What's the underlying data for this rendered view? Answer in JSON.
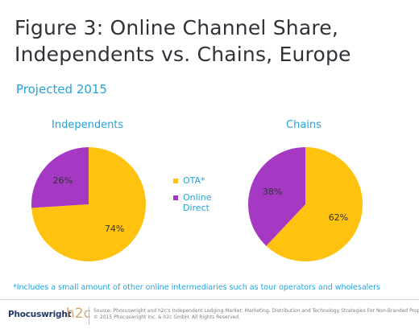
{
  "title_line1": "Figure 3: Online Channel Share,",
  "title_line2": "Independents vs. Chains, Europe",
  "subtitle": "Projected 2015",
  "colors": {
    "ota": "#ffc20e",
    "online_direct": "#a639c4",
    "accent": "#27a3d8"
  },
  "legend": [
    {
      "label": "OTA*",
      "color": "#ffc20e"
    },
    {
      "label": "Online Direct",
      "color": "#a639c4"
    }
  ],
  "chart_data": [
    {
      "type": "pie",
      "title": "Independents",
      "categories": [
        "OTA*",
        "Online Direct"
      ],
      "values": [
        74,
        26
      ],
      "labels": [
        "74%",
        "26%"
      ]
    },
    {
      "type": "pie",
      "title": "Chains",
      "categories": [
        "OTA*",
        "Online Direct"
      ],
      "values": [
        62,
        38
      ],
      "labels": [
        "62%",
        "38%"
      ]
    }
  ],
  "footnote": "*Includes a small amount of other online intermediaries such as tour operators and wholesalers",
  "footer": {
    "logo_text": "Phocuswright",
    "partner_logo": "h2c",
    "source_line1": "Source: Phocuswright and h2c's Independent Lodging Market: Marketing, Distribution and Technology Strategies For Non-Branded Properties",
    "source_line2": "© 2015 Phocuswright Inc. & h2c GmbH. All Rights Reserved."
  }
}
